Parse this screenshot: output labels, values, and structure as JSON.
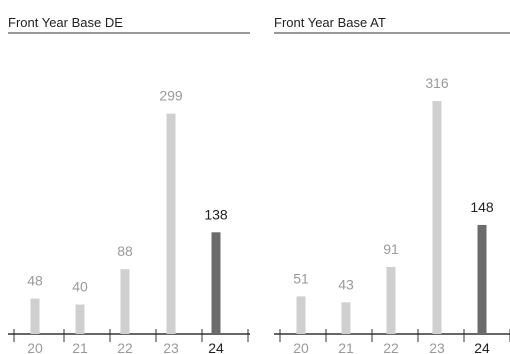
{
  "chart_data": [
    {
      "type": "bar",
      "title": "Front Year Base DE",
      "categories": [
        "20",
        "21",
        "22",
        "23",
        "24"
      ],
      "values": [
        48,
        40,
        88,
        299,
        138
      ],
      "highlight_index": 4,
      "ylim": [
        0,
        330
      ],
      "grid": false,
      "legend": "none"
    },
    {
      "type": "bar",
      "title": "Front Year Base AT",
      "categories": [
        "20",
        "21",
        "22",
        "23",
        "24"
      ],
      "values": [
        51,
        43,
        91,
        316,
        148
      ],
      "highlight_index": 4,
      "ylim": [
        0,
        330
      ],
      "grid": false,
      "legend": "none"
    }
  ],
  "colors": {
    "bar": "#cfcfcf",
    "bar_highlight": "#6b6b6b",
    "label": "#9a9a9a",
    "label_highlight": "#222222",
    "axis": "#333333",
    "title": "#222222"
  }
}
